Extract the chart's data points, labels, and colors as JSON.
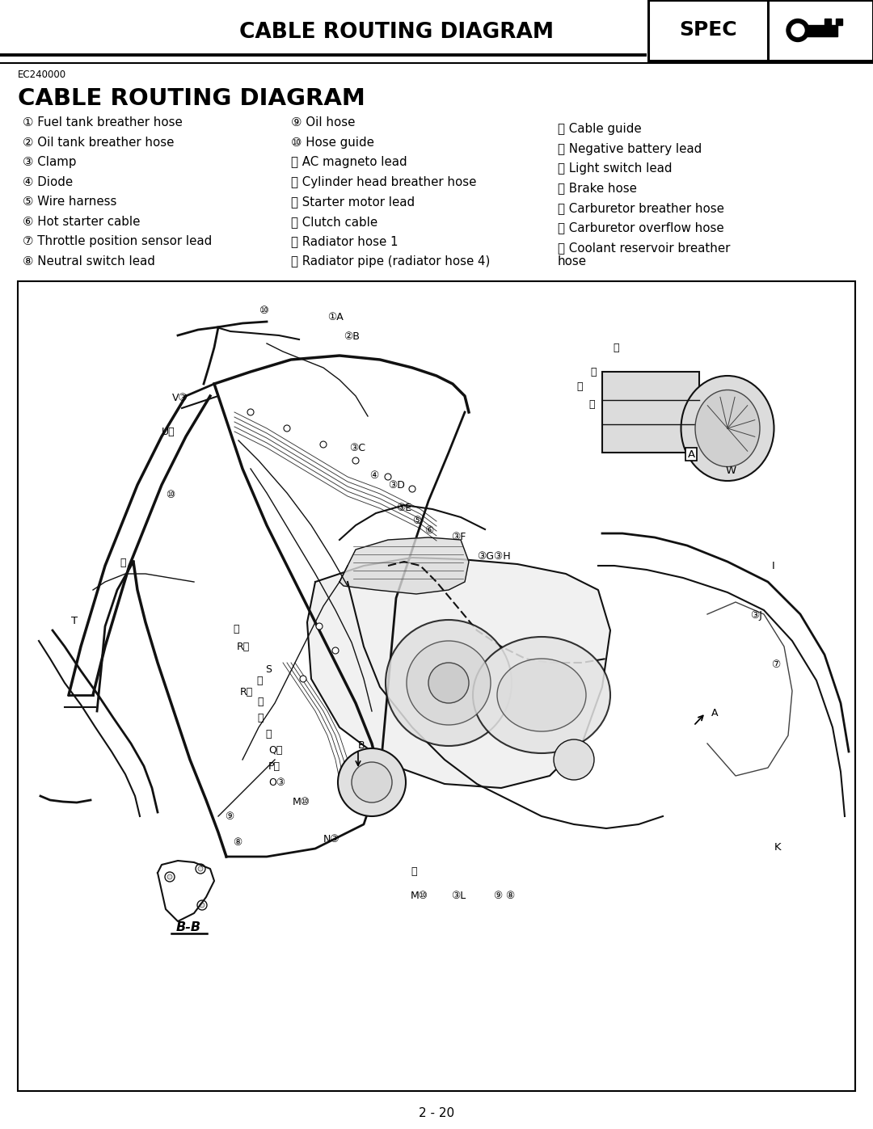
{
  "page_title": "CABLE ROUTING DIAGRAM",
  "spec_label": "SPEC",
  "small_label": "EC240000",
  "section_title": "CABLE ROUTING DIAGRAM",
  "page_number": "2 - 20",
  "background_color": "#ffffff",
  "text_color": "#000000",
  "legend_col1": [
    "① Fuel tank breather hose",
    "② Oil tank breather hose",
    "③ Clamp",
    "④ Diode",
    "⑤ Wire harness",
    "⑥ Hot starter cable",
    "⑦ Throttle position sensor lead",
    "⑧ Neutral switch lead"
  ],
  "legend_col2": [
    "⑨ Oil hose",
    "⑩ Hose guide",
    "⑪ AC magneto lead",
    "⑫ Cylinder head breather hose",
    "⑬ Starter motor lead",
    "⑭ Clutch cable",
    "⑮ Radiator hose 1",
    "⑯ Radiator pipe (radiator hose 4)"
  ],
  "legend_col3": [
    "Ⓐ Cable guide",
    "Ⓑ Negative battery lead",
    "Ⓒ Light switch lead",
    "Ⓓ Brake hose",
    "Ⓔ Carburetor breather hose",
    "Ⓕ Carburetor overflow hose",
    "Ⓖ Coolant reservoir breather\nhose"
  ]
}
